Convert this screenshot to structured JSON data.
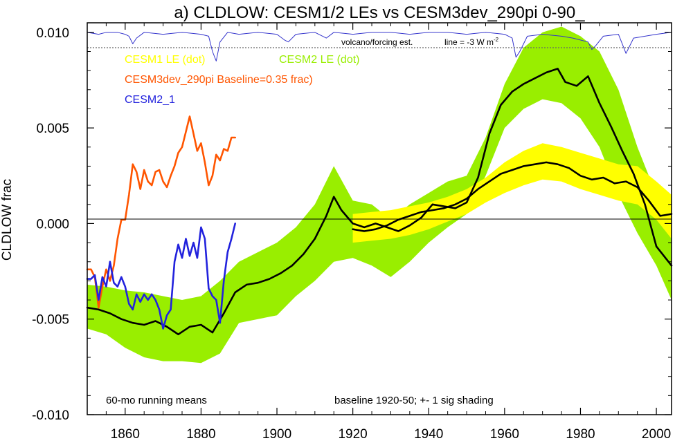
{
  "chart_data": {
    "type": "line",
    "title": "a) CLDLOW: CESM1/2 LEs vs CESM3dev_290pi 0-90_",
    "xlabel": "",
    "ylabel": "CLDLOW frac",
    "xlim": [
      1850,
      2004
    ],
    "ylim": [
      -0.01,
      0.0105
    ],
    "x_ticks": [
      1860,
      1880,
      1900,
      1920,
      1940,
      1960,
      1980,
      2000
    ],
    "x_tick_labels": [
      "1860",
      "1880",
      "1900",
      "1920",
      "1940",
      "1960",
      "1980",
      "2000"
    ],
    "y_ticks": [
      -0.01,
      -0.005,
      0.0,
      0.005,
      0.01
    ],
    "y_tick_labels": [
      "-0.010",
      "-0.005",
      "0.000",
      "0.005",
      "0.010"
    ],
    "grid": false,
    "annotations": {
      "volcano": "volcano/forcing est.",
      "volcano_line": "line = -3 W m",
      "volcano_sup": "-2",
      "running_means": "60-mo running means",
      "baseline": "baseline 1920-50; +- 1 sig shading"
    },
    "legend": [
      {
        "label": "CESM1 LE (dot)",
        "color": "#ffff00"
      },
      {
        "label": "CESM2 LE (dot)",
        "color": "#99ee00"
      },
      {
        "label": "CESM3dev_290pi Baseline=0.35 frac)",
        "color": "#ff5500"
      },
      {
        "label": "CESM2_1",
        "color": "#2222dd"
      }
    ],
    "series": [
      {
        "name": "CESM2 LE (dot)",
        "kind": "band",
        "color": "#99ee00",
        "x": [
          1850,
          1855,
          1860,
          1865,
          1870,
          1875,
          1880,
          1885,
          1890,
          1895,
          1900,
          1905,
          1910,
          1915,
          1920,
          1925,
          1930,
          1935,
          1940,
          1945,
          1950,
          1955,
          1960,
          1965,
          1970,
          1975,
          1980,
          1985,
          1990,
          1995,
          2000,
          2004
        ],
        "upper": [
          -0.0032,
          -0.0033,
          -0.0035,
          -0.0036,
          -0.0038,
          -0.004,
          -0.0038,
          -0.003,
          -0.002,
          -0.0015,
          -0.001,
          -0.0002,
          0.001,
          0.003,
          0.0012,
          0.001,
          0.0002,
          0.001,
          0.0016,
          0.0022,
          0.0025,
          0.0045,
          0.0073,
          0.0092,
          0.01,
          0.0103,
          0.0098,
          0.009,
          0.007,
          0.004,
          0.0015,
          -0.0004
        ],
        "lower": [
          -0.0055,
          -0.0058,
          -0.0065,
          -0.007,
          -0.0072,
          -0.0072,
          -0.0073,
          -0.0068,
          -0.0052,
          -0.005,
          -0.0048,
          -0.0038,
          -0.003,
          -0.002,
          -0.0018,
          -0.0022,
          -0.0028,
          -0.002,
          -0.001,
          -0.0002,
          0.0005,
          0.0025,
          0.005,
          0.006,
          0.0065,
          0.0063,
          0.0055,
          0.004,
          0.0015,
          -0.0005,
          -0.0022,
          -0.004
        ]
      },
      {
        "name": "CESM1 LE (dot)",
        "kind": "band",
        "color": "#ffff00",
        "x": [
          1920,
          1925,
          1930,
          1935,
          1940,
          1945,
          1950,
          1955,
          1960,
          1965,
          1970,
          1975,
          1980,
          1985,
          1990,
          1995,
          2000,
          2004
        ],
        "upper": [
          0.0005,
          0.0006,
          0.0007,
          0.0009,
          0.0011,
          0.0014,
          0.0018,
          0.0024,
          0.0032,
          0.0038,
          0.0042,
          0.004,
          0.0037,
          0.0034,
          0.0031,
          0.003,
          0.0022,
          0.0015
        ],
        "lower": [
          -0.001,
          -0.0009,
          -0.0008,
          -0.0006,
          -0.0003,
          0.0001,
          0.0005,
          0.0011,
          0.0016,
          0.002,
          0.0023,
          0.0022,
          0.0018,
          0.0015,
          0.0012,
          0.001,
          0.0002,
          -0.0008
        ]
      },
      {
        "name": "CESM2 LE mean",
        "kind": "line",
        "color": "#000000",
        "x": [
          1850,
          1853,
          1856,
          1859,
          1862,
          1865,
          1868,
          1871,
          1874,
          1877,
          1880,
          1883,
          1886,
          1889,
          1892,
          1895,
          1898,
          1901,
          1904,
          1907,
          1910,
          1913,
          1915,
          1917,
          1920,
          1923,
          1926,
          1929,
          1932,
          1935,
          1938,
          1941,
          1944,
          1947,
          1950,
          1953,
          1956,
          1959,
          1962,
          1965,
          1968,
          1971,
          1974,
          1976,
          1979,
          1982,
          1985,
          1988,
          1991,
          1994,
          1997,
          2000,
          2004
        ],
        "y": [
          -0.0044,
          -0.0045,
          -0.0047,
          -0.005,
          -0.0052,
          -0.0053,
          -0.0051,
          -0.0054,
          -0.0058,
          -0.0054,
          -0.0053,
          -0.0057,
          -0.0047,
          -0.0036,
          -0.0032,
          -0.0031,
          -0.0029,
          -0.0026,
          -0.0022,
          -0.0016,
          -0.0008,
          0.0004,
          0.0014,
          0.0007,
          0.0,
          -0.0002,
          0.0,
          -0.0002,
          -0.0004,
          -0.0001,
          0.0003,
          0.001,
          0.0009,
          0.0008,
          0.0011,
          0.0024,
          0.0047,
          0.0062,
          0.0069,
          0.0073,
          0.0076,
          0.0079,
          0.0081,
          0.0074,
          0.0072,
          0.0077,
          0.0063,
          0.0051,
          0.0038,
          0.0026,
          0.001,
          -0.0012,
          -0.0022
        ]
      },
      {
        "name": "CESM1 LE mean",
        "kind": "line",
        "color": "#000000",
        "x": [
          1920,
          1923,
          1926,
          1929,
          1932,
          1935,
          1938,
          1941,
          1944,
          1947,
          1950,
          1953,
          1956,
          1959,
          1962,
          1965,
          1968,
          1971,
          1974,
          1977,
          1980,
          1983,
          1986,
          1989,
          1992,
          1995,
          1998,
          2001,
          2004
        ],
        "y": [
          -0.0003,
          -0.0004,
          -0.0003,
          -0.0001,
          0.0002,
          0.0004,
          0.0006,
          0.0007,
          0.0008,
          0.001,
          0.0013,
          0.0018,
          0.0022,
          0.0026,
          0.0028,
          0.003,
          0.0031,
          0.0032,
          0.0031,
          0.0029,
          0.0025,
          0.0023,
          0.0024,
          0.0021,
          0.0022,
          0.0019,
          0.0012,
          0.0004,
          0.0005
        ]
      },
      {
        "name": "CESM3dev_290pi Baseline=0.35 frac)",
        "kind": "line",
        "color": "#ff5500",
        "x": [
          1850,
          1851,
          1852,
          1853,
          1854,
          1855,
          1856,
          1857,
          1858,
          1859,
          1860,
          1861,
          1862,
          1863,
          1864,
          1865,
          1866,
          1867,
          1868,
          1869,
          1870,
          1871,
          1872,
          1873,
          1874,
          1875,
          1876,
          1877,
          1878,
          1879,
          1880,
          1881,
          1882,
          1883,
          1884,
          1885,
          1886,
          1887,
          1888,
          1889
        ],
        "y": [
          -0.0024,
          -0.0024,
          -0.0028,
          -0.0044,
          -0.0033,
          -0.0024,
          -0.003,
          -0.0022,
          -0.0008,
          0.0002,
          0.0002,
          0.0015,
          0.0031,
          0.0027,
          0.0018,
          0.0028,
          0.0022,
          0.002,
          0.0027,
          0.0028,
          0.0022,
          0.0019,
          0.0025,
          0.003,
          0.0037,
          0.004,
          0.0048,
          0.0056,
          0.0047,
          0.0038,
          0.0042,
          0.0032,
          0.002,
          0.0025,
          0.0036,
          0.0033,
          0.0039,
          0.0038,
          0.0045,
          0.0045
        ]
      },
      {
        "name": "CESM2_1",
        "kind": "line",
        "color": "#2222dd",
        "x": [
          1850,
          1851,
          1852,
          1853,
          1854,
          1855,
          1856,
          1857,
          1858,
          1859,
          1860,
          1861,
          1862,
          1863,
          1864,
          1865,
          1866,
          1867,
          1868,
          1869,
          1870,
          1871,
          1872,
          1873,
          1874,
          1875,
          1876,
          1877,
          1878,
          1879,
          1880,
          1881,
          1882,
          1883,
          1884,
          1885,
          1886,
          1887,
          1888,
          1889
        ],
        "y": [
          -0.0029,
          -0.0029,
          -0.0027,
          -0.004,
          -0.0028,
          -0.0033,
          -0.002,
          -0.0031,
          -0.0033,
          -0.0028,
          -0.0033,
          -0.0042,
          -0.0045,
          -0.0037,
          -0.0041,
          -0.0037,
          -0.004,
          -0.0037,
          -0.004,
          -0.0045,
          -0.0055,
          -0.0048,
          -0.0045,
          -0.002,
          -0.0011,
          -0.0018,
          -0.0008,
          -0.0017,
          -0.001,
          -0.0018,
          -0.0002,
          -0.0008,
          -0.0034,
          -0.0038,
          -0.004,
          -0.0052,
          -0.003,
          -0.0015,
          -0.0008,
          0.0
        ]
      },
      {
        "name": "volcano/forcing est.",
        "kind": "line",
        "color": "#3333cc",
        "x": [
          1850,
          1853,
          1855,
          1858,
          1860,
          1861,
          1862,
          1863,
          1865,
          1870,
          1875,
          1880,
          1882,
          1883,
          1884,
          1885,
          1887,
          1890,
          1895,
          1900,
          1902,
          1903,
          1905,
          1910,
          1913,
          1915,
          1920,
          1925,
          1930,
          1935,
          1940,
          1945,
          1950,
          1955,
          1960,
          1962,
          1963,
          1964,
          1966,
          1970,
          1975,
          1978,
          1982,
          1983,
          1984,
          1986,
          1990,
          1991,
          1992,
          1994,
          2000,
          2004
        ],
        "y": [
          0.01,
          0.0099,
          0.01,
          0.01,
          0.0099,
          0.0098,
          0.0094,
          0.0097,
          0.01,
          0.0099,
          0.01,
          0.0099,
          0.0098,
          0.009,
          0.0085,
          0.0095,
          0.01,
          0.0099,
          0.01,
          0.0099,
          0.0096,
          0.0095,
          0.0099,
          0.01,
          0.0097,
          0.01,
          0.0099,
          0.01,
          0.01,
          0.0099,
          0.01,
          0.01,
          0.0099,
          0.01,
          0.0099,
          0.0097,
          0.0087,
          0.009,
          0.0098,
          0.0099,
          0.0098,
          0.0097,
          0.0095,
          0.0091,
          0.0093,
          0.0098,
          0.0099,
          0.0094,
          0.0089,
          0.0097,
          0.0099,
          0.01
        ]
      }
    ]
  }
}
